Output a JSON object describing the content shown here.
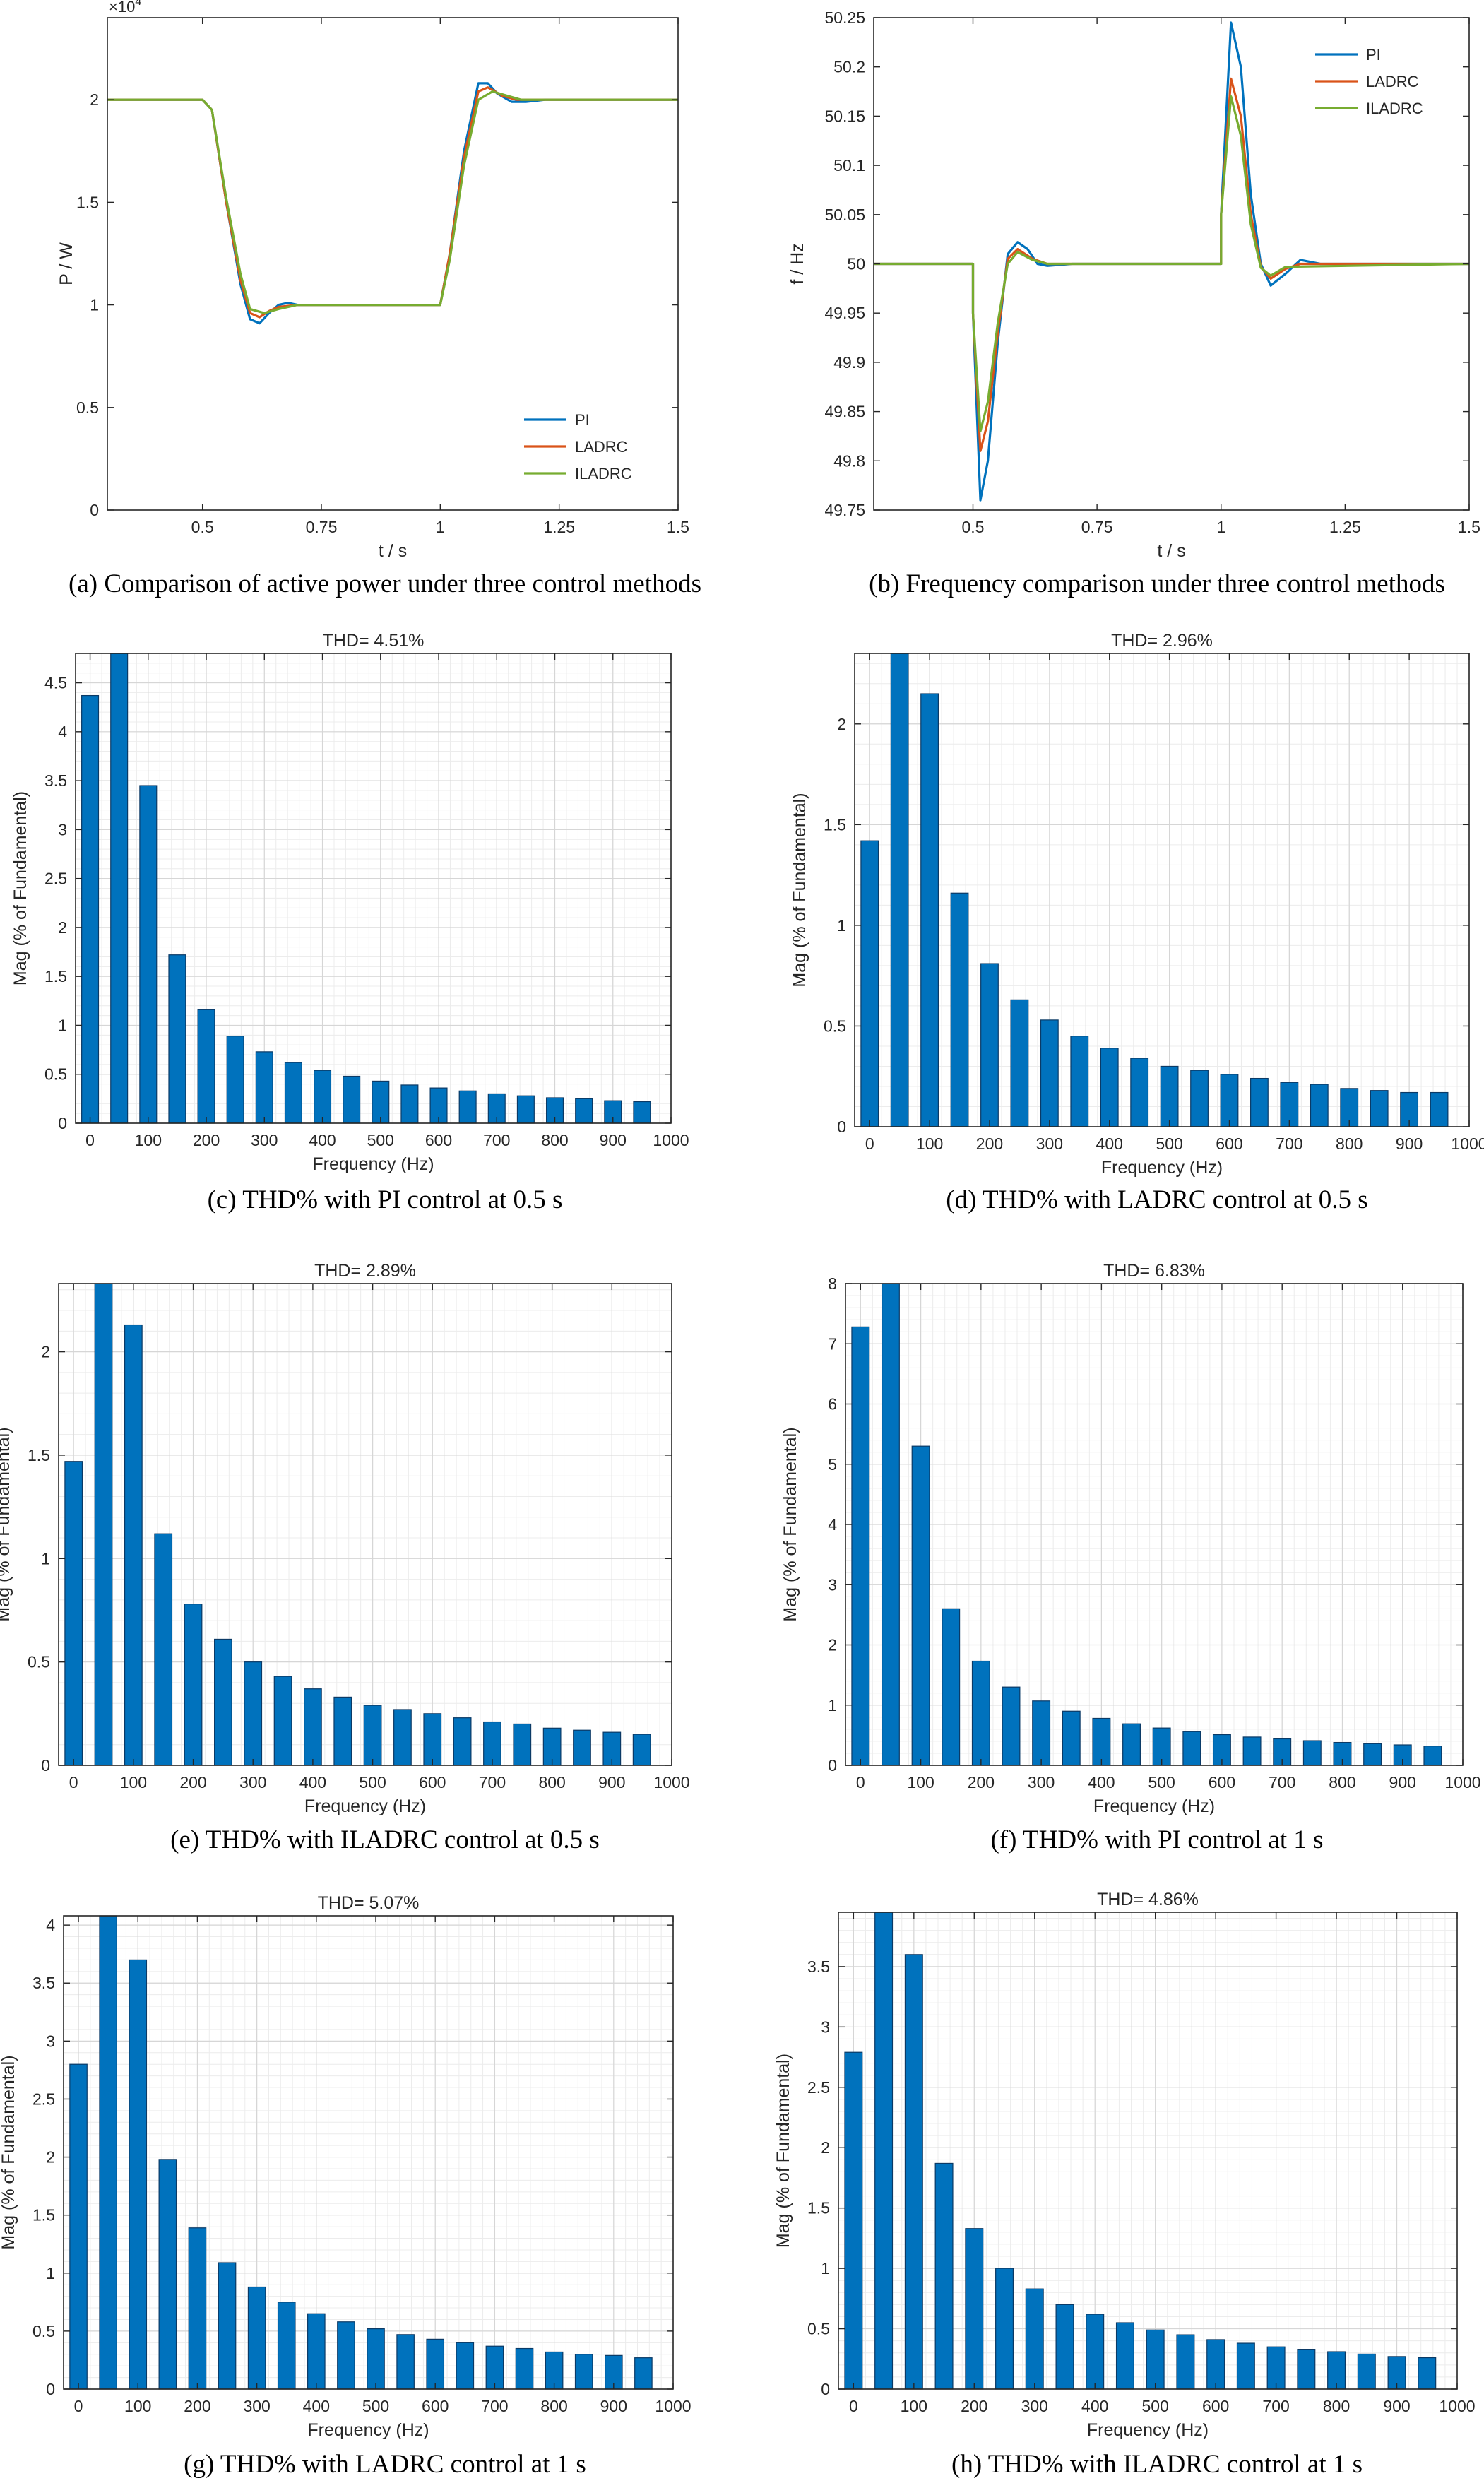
{
  "chart_data": [
    {
      "type": "line",
      "caption": "(a) Comparison of active power under three control methods",
      "xlabel": "t / s",
      "ylabel": "P / W",
      "exponent_label": "×10",
      "exponent_power": "4",
      "xlim": [
        0.3,
        1.5
      ],
      "ylim": [
        0,
        2.4
      ],
      "xticks": [
        0.5,
        0.75,
        1,
        1.25,
        1.5
      ],
      "xticklabels": [
        "0.5",
        "0.75",
        "1",
        "1.25",
        "1.5"
      ],
      "yticks": [
        0,
        0.5,
        1,
        1.5,
        2
      ],
      "yticklabels": [
        "0",
        "0.5",
        "1",
        "1.5",
        "2"
      ],
      "legend_position": "bottom-right",
      "grid": false,
      "series": [
        {
          "name": "PI",
          "color": "#0072BD",
          "points": [
            [
              0.3,
              2.0
            ],
            [
              0.5,
              2.0
            ],
            [
              0.52,
              1.95
            ],
            [
              0.55,
              1.5
            ],
            [
              0.58,
              1.1
            ],
            [
              0.6,
              0.93
            ],
            [
              0.62,
              0.91
            ],
            [
              0.64,
              0.96
            ],
            [
              0.66,
              1.0
            ],
            [
              0.68,
              1.01
            ],
            [
              0.7,
              1.0
            ],
            [
              0.75,
              1.0
            ],
            [
              1.0,
              1.0
            ],
            [
              1.02,
              1.25
            ],
            [
              1.05,
              1.75
            ],
            [
              1.08,
              2.08
            ],
            [
              1.1,
              2.08
            ],
            [
              1.12,
              2.03
            ],
            [
              1.15,
              1.99
            ],
            [
              1.18,
              1.99
            ],
            [
              1.22,
              2.0
            ],
            [
              1.5,
              2.0
            ]
          ]
        },
        {
          "name": "LADRC",
          "color": "#D95319",
          "points": [
            [
              0.3,
              2.0
            ],
            [
              0.5,
              2.0
            ],
            [
              0.52,
              1.95
            ],
            [
              0.55,
              1.5
            ],
            [
              0.58,
              1.12
            ],
            [
              0.6,
              0.96
            ],
            [
              0.62,
              0.94
            ],
            [
              0.64,
              0.97
            ],
            [
              0.66,
              0.99
            ],
            [
              0.7,
              1.0
            ],
            [
              0.75,
              1.0
            ],
            [
              1.0,
              1.0
            ],
            [
              1.02,
              1.25
            ],
            [
              1.05,
              1.72
            ],
            [
              1.08,
              2.04
            ],
            [
              1.1,
              2.06
            ],
            [
              1.13,
              2.02
            ],
            [
              1.16,
              2.0
            ],
            [
              1.5,
              2.0
            ]
          ]
        },
        {
          "name": "ILADRC",
          "color": "#77AC30",
          "points": [
            [
              0.3,
              2.0
            ],
            [
              0.5,
              2.0
            ],
            [
              0.52,
              1.95
            ],
            [
              0.55,
              1.52
            ],
            [
              0.58,
              1.15
            ],
            [
              0.6,
              0.98
            ],
            [
              0.63,
              0.96
            ],
            [
              0.66,
              0.98
            ],
            [
              0.7,
              1.0
            ],
            [
              0.75,
              1.0
            ],
            [
              1.0,
              1.0
            ],
            [
              1.02,
              1.22
            ],
            [
              1.05,
              1.68
            ],
            [
              1.08,
              2.0
            ],
            [
              1.11,
              2.04
            ],
            [
              1.14,
              2.02
            ],
            [
              1.17,
              2.0
            ],
            [
              1.5,
              2.0
            ]
          ]
        }
      ]
    },
    {
      "type": "line",
      "caption": "(b) Frequency comparison under three control methods",
      "xlabel": "t / s",
      "ylabel": "f / Hz",
      "xlim": [
        0.3,
        1.5
      ],
      "ylim": [
        49.75,
        50.25
      ],
      "xticks": [
        0.5,
        0.75,
        1,
        1.25,
        1.5
      ],
      "xticklabels": [
        "0.5",
        "0.75",
        "1",
        "1.25",
        "1.5"
      ],
      "yticks": [
        49.75,
        49.8,
        49.85,
        49.9,
        49.95,
        50,
        50.05,
        50.1,
        50.15,
        50.2,
        50.25
      ],
      "yticklabels": [
        "49.75",
        "49.8",
        "49.85",
        "49.9",
        "49.95",
        "50",
        "50.05",
        "50.1",
        "50.15",
        "50.2",
        "50.25"
      ],
      "legend_position": "top-right",
      "grid": false,
      "series": [
        {
          "name": "PI",
          "color": "#0072BD",
          "points": [
            [
              0.3,
              50.0
            ],
            [
              0.5,
              50.0
            ],
            [
              0.5,
              49.95
            ],
            [
              0.515,
              49.76
            ],
            [
              0.53,
              49.8
            ],
            [
              0.55,
              49.92
            ],
            [
              0.57,
              50.01
            ],
            [
              0.59,
              50.022
            ],
            [
              0.61,
              50.015
            ],
            [
              0.63,
              50.0
            ],
            [
              0.65,
              49.998
            ],
            [
              0.7,
              50.0
            ],
            [
              1.0,
              50.0
            ],
            [
              1.0,
              50.05
            ],
            [
              1.02,
              50.245
            ],
            [
              1.04,
              50.2
            ],
            [
              1.06,
              50.07
            ],
            [
              1.08,
              50.0
            ],
            [
              1.1,
              49.978
            ],
            [
              1.13,
              49.99
            ],
            [
              1.16,
              50.004
            ],
            [
              1.2,
              50.0
            ],
            [
              1.5,
              50.0
            ]
          ]
        },
        {
          "name": "LADRC",
          "color": "#D95319",
          "points": [
            [
              0.3,
              50.0
            ],
            [
              0.5,
              50.0
            ],
            [
              0.5,
              49.95
            ],
            [
              0.515,
              49.81
            ],
            [
              0.53,
              49.84
            ],
            [
              0.55,
              49.93
            ],
            [
              0.57,
              50.005
            ],
            [
              0.59,
              50.015
            ],
            [
              0.62,
              50.005
            ],
            [
              0.65,
              50.0
            ],
            [
              1.0,
              50.0
            ],
            [
              1.0,
              50.05
            ],
            [
              1.02,
              50.188
            ],
            [
              1.04,
              50.15
            ],
            [
              1.06,
              50.05
            ],
            [
              1.08,
              49.997
            ],
            [
              1.1,
              49.985
            ],
            [
              1.13,
              49.995
            ],
            [
              1.16,
              50.0
            ],
            [
              1.5,
              50.0
            ]
          ]
        },
        {
          "name": "ILADRC",
          "color": "#77AC30",
          "points": [
            [
              0.3,
              50.0
            ],
            [
              0.5,
              50.0
            ],
            [
              0.5,
              49.95
            ],
            [
              0.515,
              49.83
            ],
            [
              0.53,
              49.86
            ],
            [
              0.55,
              49.94
            ],
            [
              0.57,
              50.0
            ],
            [
              0.59,
              50.012
            ],
            [
              0.62,
              50.004
            ],
            [
              0.65,
              50.0
            ],
            [
              1.0,
              50.0
            ],
            [
              1.0,
              50.05
            ],
            [
              1.02,
              50.17
            ],
            [
              1.04,
              50.13
            ],
            [
              1.06,
              50.04
            ],
            [
              1.08,
              49.996
            ],
            [
              1.1,
              49.988
            ],
            [
              1.13,
              49.997
            ],
            [
              1.5,
              50.0
            ]
          ]
        }
      ]
    },
    {
      "type": "bar",
      "caption": "(c) THD% with PI control at 0.5 s",
      "title": "THD= 4.51%",
      "xlabel": "Frequency (Hz)",
      "ylabel": "Mag (% of Fundamental)",
      "xlim": [
        -25,
        1000
      ],
      "ylim": [
        0,
        4.8
      ],
      "xticks": [
        0,
        100,
        200,
        300,
        400,
        500,
        600,
        700,
        800,
        900,
        1000
      ],
      "xticklabels": [
        "0",
        "100",
        "200",
        "300",
        "400",
        "500",
        "600",
        "700",
        "800",
        "900",
        "1000"
      ],
      "yticks": [
        0,
        0.5,
        1,
        1.5,
        2,
        2.5,
        3,
        3.5,
        4,
        4.5
      ],
      "yticklabels": [
        "0",
        "0.5",
        "1",
        "1.5",
        "2",
        "2.5",
        "3",
        "3.5",
        "4",
        "4.5"
      ],
      "grid": true,
      "bar_color": "#0072BD",
      "x": [
        0,
        50,
        100,
        150,
        200,
        250,
        300,
        350,
        400,
        450,
        500,
        550,
        600,
        650,
        700,
        750,
        800,
        850,
        900,
        950
      ],
      "values": [
        4.37,
        4.8,
        3.45,
        1.72,
        1.16,
        0.89,
        0.73,
        0.62,
        0.54,
        0.48,
        0.43,
        0.39,
        0.36,
        0.33,
        0.3,
        0.28,
        0.26,
        0.25,
        0.23,
        0.22
      ]
    },
    {
      "type": "bar",
      "caption": "(d) THD% with LADRC control at 0.5 s",
      "title": "THD= 2.96%",
      "xlabel": "Frequency (Hz)",
      "ylabel": "Mag (% of Fundamental)",
      "xlim": [
        -25,
        1000
      ],
      "ylim": [
        0,
        2.35
      ],
      "xticks": [
        0,
        100,
        200,
        300,
        400,
        500,
        600,
        700,
        800,
        900,
        1000
      ],
      "xticklabels": [
        "0",
        "100",
        "200",
        "300",
        "400",
        "500",
        "600",
        "700",
        "800",
        "900",
        "1000"
      ],
      "yticks": [
        0,
        0.5,
        1,
        1.5,
        2
      ],
      "yticklabels": [
        "0",
        "0.5",
        "1",
        "1.5",
        "2"
      ],
      "grid": true,
      "bar_color": "#0072BD",
      "x": [
        0,
        50,
        100,
        150,
        200,
        250,
        300,
        350,
        400,
        450,
        500,
        550,
        600,
        650,
        700,
        750,
        800,
        850,
        900,
        950
      ],
      "values": [
        1.42,
        2.35,
        2.15,
        1.16,
        0.81,
        0.63,
        0.53,
        0.45,
        0.39,
        0.34,
        0.3,
        0.28,
        0.26,
        0.24,
        0.22,
        0.21,
        0.19,
        0.18,
        0.17,
        0.17
      ]
    },
    {
      "type": "bar",
      "caption": "(e) THD% with ILADRC control at 0.5 s",
      "title": "THD= 2.89%",
      "xlabel": "Frequency (Hz)",
      "ylabel": "Mag (% of Fundamental)",
      "xlim": [
        -25,
        1000
      ],
      "ylim": [
        0,
        2.33
      ],
      "xticks": [
        0,
        100,
        200,
        300,
        400,
        500,
        600,
        700,
        800,
        900,
        1000
      ],
      "xticklabels": [
        "0",
        "100",
        "200",
        "300",
        "400",
        "500",
        "600",
        "700",
        "800",
        "900",
        "1000"
      ],
      "yticks": [
        0,
        0.5,
        1,
        1.5,
        2
      ],
      "yticklabels": [
        "0",
        "0.5",
        "1",
        "1.5",
        "2"
      ],
      "grid": true,
      "bar_color": "#0072BD",
      "x": [
        0,
        50,
        100,
        150,
        200,
        250,
        300,
        350,
        400,
        450,
        500,
        550,
        600,
        650,
        700,
        750,
        800,
        850,
        900,
        950
      ],
      "values": [
        1.47,
        2.33,
        2.13,
        1.12,
        0.78,
        0.61,
        0.5,
        0.43,
        0.37,
        0.33,
        0.29,
        0.27,
        0.25,
        0.23,
        0.21,
        0.2,
        0.18,
        0.17,
        0.16,
        0.15
      ]
    },
    {
      "type": "bar",
      "caption": "(f) THD% with PI control at 1 s",
      "title": "THD= 6.83%",
      "xlabel": "Frequency (Hz)",
      "ylabel": "Mag (% of Fundamental)",
      "xlim": [
        -25,
        1000
      ],
      "ylim": [
        0,
        8
      ],
      "xticks": [
        0,
        100,
        200,
        300,
        400,
        500,
        600,
        700,
        800,
        900,
        1000
      ],
      "xticklabels": [
        "0",
        "100",
        "200",
        "300",
        "400",
        "500",
        "600",
        "700",
        "800",
        "900",
        "1000"
      ],
      "yticks": [
        0,
        1,
        2,
        3,
        4,
        5,
        6,
        7,
        8
      ],
      "yticklabels": [
        "0",
        "1",
        "2",
        "3",
        "4",
        "5",
        "6",
        "7",
        "8"
      ],
      "grid": true,
      "bar_color": "#0072BD",
      "x": [
        0,
        50,
        100,
        150,
        200,
        250,
        300,
        350,
        400,
        450,
        500,
        550,
        600,
        650,
        700,
        750,
        800,
        850,
        900,
        950
      ],
      "values": [
        7.28,
        8.0,
        5.3,
        2.6,
        1.73,
        1.3,
        1.07,
        0.9,
        0.78,
        0.69,
        0.62,
        0.56,
        0.51,
        0.47,
        0.44,
        0.41,
        0.38,
        0.36,
        0.34,
        0.32
      ]
    },
    {
      "type": "bar",
      "caption": "(g) THD% with LADRC control at 1 s",
      "title": "THD= 5.07%",
      "xlabel": "Frequency (Hz)",
      "ylabel": "Mag (% of Fundamental)",
      "xlim": [
        -25,
        1000
      ],
      "ylim": [
        0,
        4.08
      ],
      "xticks": [
        0,
        100,
        200,
        300,
        400,
        500,
        600,
        700,
        800,
        900,
        1000
      ],
      "xticklabels": [
        "0",
        "100",
        "200",
        "300",
        "400",
        "500",
        "600",
        "700",
        "800",
        "900",
        "1000"
      ],
      "yticks": [
        0,
        0.5,
        1,
        1.5,
        2,
        2.5,
        3,
        3.5,
        4
      ],
      "yticklabels": [
        "0",
        "0.5",
        "1",
        "1.5",
        "2",
        "2.5",
        "3",
        "3.5",
        "4"
      ],
      "grid": true,
      "bar_color": "#0072BD",
      "x": [
        0,
        50,
        100,
        150,
        200,
        250,
        300,
        350,
        400,
        450,
        500,
        550,
        600,
        650,
        700,
        750,
        800,
        850,
        900,
        950
      ],
      "values": [
        2.8,
        4.08,
        3.7,
        1.98,
        1.39,
        1.09,
        0.88,
        0.75,
        0.65,
        0.58,
        0.52,
        0.47,
        0.43,
        0.4,
        0.37,
        0.35,
        0.32,
        0.3,
        0.29,
        0.27
      ]
    },
    {
      "type": "bar",
      "caption": "(h) THD% with ILADRC control at 1 s",
      "title": "THD= 4.86%",
      "xlabel": "Frequency (Hz)",
      "ylabel": "Mag (% of Fundamental)",
      "xlim": [
        -25,
        1000
      ],
      "ylim": [
        0,
        3.95
      ],
      "xticks": [
        0,
        100,
        200,
        300,
        400,
        500,
        600,
        700,
        800,
        900,
        1000
      ],
      "xticklabels": [
        "0",
        "100",
        "200",
        "300",
        "400",
        "500",
        "600",
        "700",
        "800",
        "900",
        "1000"
      ],
      "yticks": [
        0,
        0.5,
        1,
        1.5,
        2,
        2.5,
        3,
        3.5
      ],
      "yticklabels": [
        "0",
        "0.5",
        "1",
        "1.5",
        "2",
        "2.5",
        "3",
        "3.5"
      ],
      "grid": true,
      "bar_color": "#0072BD",
      "x": [
        0,
        50,
        100,
        150,
        200,
        250,
        300,
        350,
        400,
        450,
        500,
        550,
        600,
        650,
        700,
        750,
        800,
        850,
        900,
        950
      ],
      "values": [
        2.79,
        3.95,
        3.6,
        1.87,
        1.33,
        1.0,
        0.83,
        0.7,
        0.62,
        0.55,
        0.49,
        0.45,
        0.41,
        0.38,
        0.35,
        0.33,
        0.31,
        0.29,
        0.27,
        0.26
      ]
    }
  ]
}
